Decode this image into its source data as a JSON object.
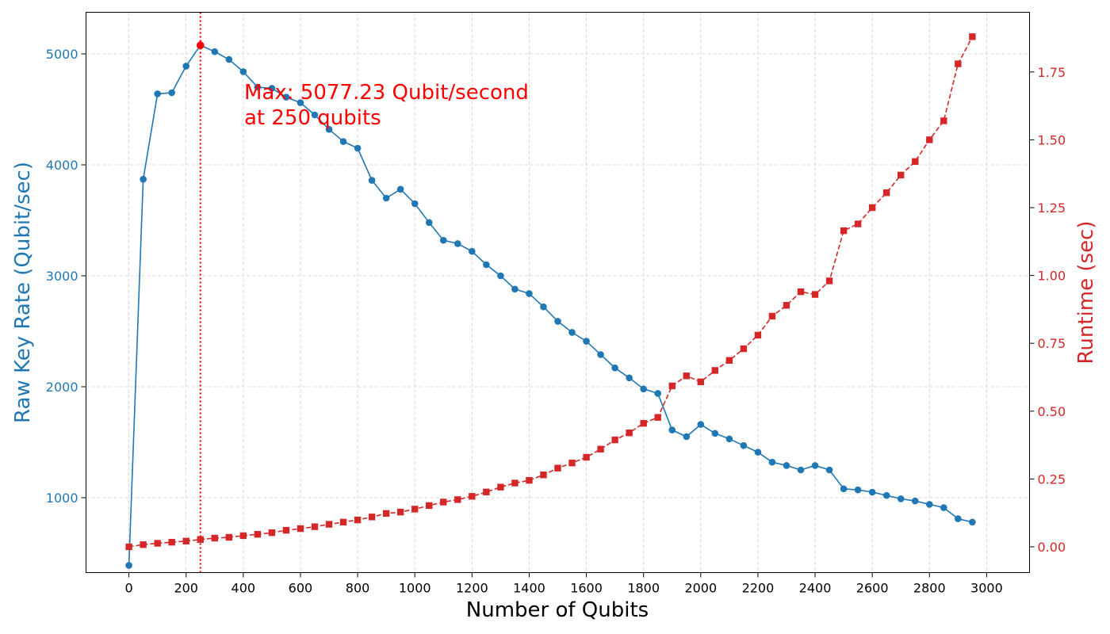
{
  "chart_data": {
    "type": "line",
    "xlabel": "Number of Qubits",
    "ylabel_left": "Raw Key Rate (Qubit/sec)",
    "ylabel_right": "Runtime (sec)",
    "xlim": [
      -150,
      3150
    ],
    "ylim_left": [
      325,
      5375
    ],
    "ylim_right": [
      -0.095,
      1.97
    ],
    "x_ticks": [
      0,
      200,
      400,
      600,
      800,
      1000,
      1200,
      1400,
      1600,
      1800,
      2000,
      2200,
      2400,
      2600,
      2800,
      3000
    ],
    "y_left_ticks": [
      1000,
      2000,
      3000,
      4000,
      5000
    ],
    "y_right_ticks": [
      "0.00",
      "0.25",
      "0.50",
      "0.75",
      "1.00",
      "1.25",
      "1.50",
      "1.75"
    ],
    "grid": true,
    "x": [
      0,
      50,
      100,
      150,
      200,
      250,
      300,
      350,
      400,
      450,
      500,
      550,
      600,
      650,
      700,
      750,
      800,
      850,
      900,
      950,
      1000,
      1050,
      1100,
      1150,
      1200,
      1250,
      1300,
      1350,
      1400,
      1450,
      1500,
      1550,
      1600,
      1650,
      1700,
      1750,
      1800,
      1850,
      1900,
      1950,
      2000,
      2050,
      2100,
      2150,
      2200,
      2250,
      2300,
      2350,
      2400,
      2450,
      2500,
      2550,
      2600,
      2650,
      2700,
      2750,
      2800,
      2850,
      2900,
      2950
    ],
    "series": [
      {
        "axis": "left",
        "color": "#1f77b4",
        "style": "solid",
        "marker": "circle",
        "values": [
          390,
          3870,
          4640,
          4650,
          4890,
          5077,
          5020,
          4950,
          4840,
          4700,
          4690,
          4610,
          4560,
          4450,
          4320,
          4210,
          4150,
          3860,
          3700,
          3780,
          3650,
          3480,
          3320,
          3290,
          3220,
          3100,
          3000,
          2880,
          2840,
          2720,
          2590,
          2490,
          2410,
          2290,
          2170,
          2080,
          1980,
          1940,
          1610,
          1550,
          1660,
          1580,
          1530,
          1470,
          1410,
          1320,
          1290,
          1250,
          1290,
          1250,
          1080,
          1070,
          1050,
          1020,
          990,
          970,
          940,
          910,
          810,
          780
        ]
      },
      {
        "axis": "right",
        "color": "#d62728",
        "style": "dashed",
        "marker": "square",
        "values": [
          0.0,
          0.008,
          0.013,
          0.017,
          0.021,
          0.027,
          0.032,
          0.035,
          0.041,
          0.046,
          0.052,
          0.061,
          0.067,
          0.074,
          0.083,
          0.091,
          0.099,
          0.11,
          0.123,
          0.128,
          0.139,
          0.152,
          0.165,
          0.174,
          0.186,
          0.202,
          0.22,
          0.235,
          0.245,
          0.265,
          0.29,
          0.309,
          0.33,
          0.36,
          0.394,
          0.42,
          0.455,
          0.477,
          0.593,
          0.63,
          0.608,
          0.65,
          0.687,
          0.73,
          0.78,
          0.85,
          0.89,
          0.94,
          0.93,
          0.98,
          1.165,
          1.19,
          1.25,
          1.305,
          1.37,
          1.42,
          1.5,
          1.57,
          1.78,
          1.88
        ]
      }
    ],
    "max_marker": {
      "x": 250,
      "y": 5077.23,
      "color": "#ff0000"
    },
    "annotation": {
      "line1": "Max: 5077.23 Qubit/second",
      "line2": "at 250 qubits",
      "color": "#ff0000"
    },
    "colors": {
      "left_axis": "#1f77b4",
      "right_axis": "#d62728",
      "grid": "#cccccc"
    }
  }
}
